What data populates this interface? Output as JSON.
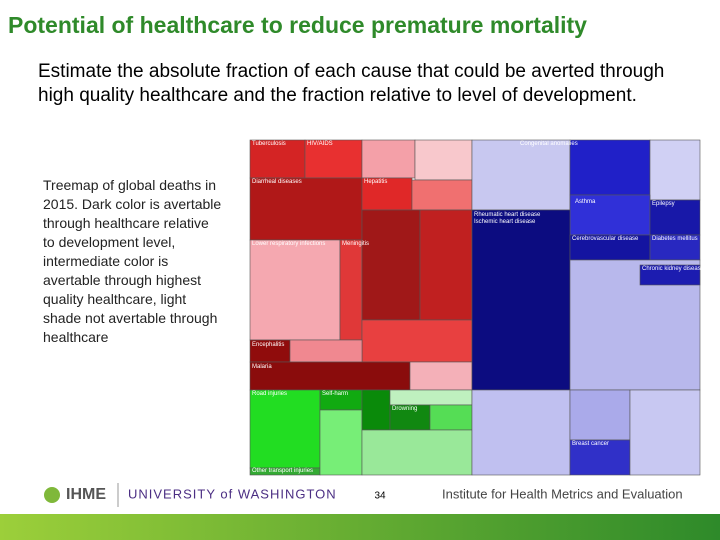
{
  "slide": {
    "title": "Potential of healthcare to reduce premature mortality",
    "subtitle": "Estimate the absolute fraction of each cause that could be averted through high quality healthcare and the fraction relative to level of development.",
    "caption": "Treemap of global deaths in 2015. Dark color is avertable through healthcare relative to development level, intermediate color is avertable through highest quality healthcare, light shade not avertable through healthcare",
    "page_number": "34"
  },
  "treemap": {
    "labels": [
      "Tuberculosis",
      "HIV/AIDS",
      "Diarrheal diseases",
      "Hepatitis",
      "Lower respiratory infections",
      "Meningitis",
      "Encephalitis",
      "Malaria",
      "Road injuries",
      "Self-harm",
      "Drowning",
      "Other transport injuries",
      "Congenital anomalies",
      "Asthma",
      "Epilepsy",
      "Diabetes mellitus",
      "Rheumatic heart disease",
      "Ischemic heart disease",
      "Cerebrovascular disease",
      "Chronic kidney disease",
      "Breast cancer"
    ]
  },
  "footer": {
    "left_logo": "IHME",
    "university": "UNIVERSITY of WASHINGTON",
    "institute": "Institute for Health Metrics and Evaluation"
  }
}
